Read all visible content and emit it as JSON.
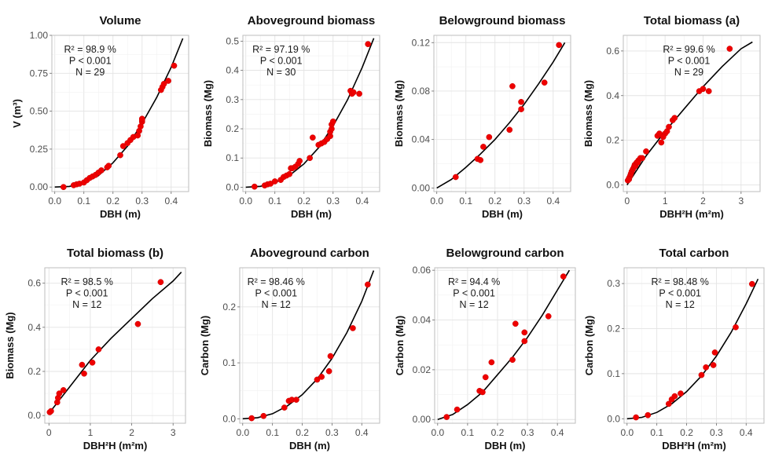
{
  "chart_data": [
    {
      "type": "scatter",
      "title": "Volume",
      "xlabel": "DBH (m)",
      "ylabel": "V (m³)",
      "xlim": [
        -0.01,
        0.46
      ],
      "ylim": [
        -0.03,
        1.0
      ],
      "xticks": [
        0.0,
        0.1,
        0.2,
        0.3,
        0.4
      ],
      "xtick_labels": [
        "0.0",
        "0.1",
        "0.2",
        "0.3",
        "0.4"
      ],
      "yticks": [
        0.0,
        0.25,
        0.5,
        0.75,
        1.0
      ],
      "ytick_labels": [
        "0.00",
        "0.25",
        "0.50",
        "0.75",
        "1.00"
      ],
      "grid": true,
      "annotations": [
        "R² = 98.9 %",
        "P < 0.001",
        "N = 29"
      ],
      "points": [
        [
          0.03,
          0.0
        ],
        [
          0.065,
          0.012
        ],
        [
          0.075,
          0.018
        ],
        [
          0.085,
          0.022
        ],
        [
          0.1,
          0.03
        ],
        [
          0.11,
          0.045
        ],
        [
          0.12,
          0.06
        ],
        [
          0.13,
          0.07
        ],
        [
          0.14,
          0.08
        ],
        [
          0.15,
          0.095
        ],
        [
          0.16,
          0.11
        ],
        [
          0.18,
          0.13
        ],
        [
          0.185,
          0.14
        ],
        [
          0.225,
          0.21
        ],
        [
          0.235,
          0.27
        ],
        [
          0.25,
          0.29
        ],
        [
          0.26,
          0.31
        ],
        [
          0.27,
          0.33
        ],
        [
          0.285,
          0.34
        ],
        [
          0.29,
          0.37
        ],
        [
          0.295,
          0.4
        ],
        [
          0.3,
          0.43
        ],
        [
          0.3,
          0.44
        ],
        [
          0.365,
          0.64
        ],
        [
          0.37,
          0.66
        ],
        [
          0.375,
          0.68
        ],
        [
          0.39,
          0.7
        ],
        [
          0.41,
          0.8
        ],
        [
          0.3,
          0.45
        ]
      ],
      "fit": [
        [
          0.0,
          0.0
        ],
        [
          0.05,
          0.004
        ],
        [
          0.1,
          0.026
        ],
        [
          0.15,
          0.075
        ],
        [
          0.2,
          0.16
        ],
        [
          0.25,
          0.27
        ],
        [
          0.3,
          0.42
        ],
        [
          0.35,
          0.59
        ],
        [
          0.4,
          0.79
        ],
        [
          0.44,
          0.98
        ]
      ]
    },
    {
      "type": "scatter",
      "title": "Aboveground biomass",
      "xlabel": "DBH (m)",
      "ylabel": "Biomass (Mg)",
      "xlim": [
        -0.01,
        0.46
      ],
      "ylim": [
        -0.015,
        0.52
      ],
      "xticks": [
        0.0,
        0.1,
        0.2,
        0.3,
        0.4
      ],
      "xtick_labels": [
        "0.0",
        "0.1",
        "0.2",
        "0.3",
        "0.4"
      ],
      "yticks": [
        0.0,
        0.1,
        0.2,
        0.3,
        0.4,
        0.5
      ],
      "ytick_labels": [
        "0.0",
        "0.1",
        "0.2",
        "0.3",
        "0.4",
        "0.5"
      ],
      "grid": true,
      "annotations": [
        "R² = 97.19 %",
        "P < 0.001",
        "N = 30"
      ],
      "points": [
        [
          0.03,
          0.002
        ],
        [
          0.065,
          0.006
        ],
        [
          0.075,
          0.01
        ],
        [
          0.085,
          0.012
        ],
        [
          0.1,
          0.02
        ],
        [
          0.12,
          0.025
        ],
        [
          0.13,
          0.035
        ],
        [
          0.14,
          0.04
        ],
        [
          0.15,
          0.045
        ],
        [
          0.155,
          0.065
        ],
        [
          0.16,
          0.065
        ],
        [
          0.17,
          0.07
        ],
        [
          0.18,
          0.08
        ],
        [
          0.185,
          0.09
        ],
        [
          0.22,
          0.1
        ],
        [
          0.23,
          0.17
        ],
        [
          0.25,
          0.145
        ],
        [
          0.26,
          0.15
        ],
        [
          0.27,
          0.155
        ],
        [
          0.28,
          0.165
        ],
        [
          0.29,
          0.175
        ],
        [
          0.29,
          0.19
        ],
        [
          0.295,
          0.2
        ],
        [
          0.295,
          0.215
        ],
        [
          0.3,
          0.225
        ],
        [
          0.36,
          0.33
        ],
        [
          0.365,
          0.32
        ],
        [
          0.37,
          0.325
        ],
        [
          0.39,
          0.32
        ],
        [
          0.42,
          0.49
        ]
      ],
      "fit": [
        [
          0.0,
          0.0
        ],
        [
          0.05,
          0.003
        ],
        [
          0.1,
          0.015
        ],
        [
          0.15,
          0.04
        ],
        [
          0.2,
          0.08
        ],
        [
          0.25,
          0.135
        ],
        [
          0.3,
          0.21
        ],
        [
          0.35,
          0.3
        ],
        [
          0.4,
          0.41
        ],
        [
          0.44,
          0.51
        ]
      ]
    },
    {
      "type": "scatter",
      "title": "Belowground biomass",
      "xlabel": "DBH (m)",
      "ylabel": "Biomass (Mg)",
      "xlim": [
        -0.01,
        0.46
      ],
      "ylim": [
        -0.003,
        0.126
      ],
      "xticks": [
        0.0,
        0.1,
        0.2,
        0.3,
        0.4
      ],
      "xtick_labels": [
        "0.0",
        "0.1",
        "0.2",
        "0.3",
        "0.4"
      ],
      "yticks": [
        0.0,
        0.04,
        0.08,
        0.12
      ],
      "ytick_labels": [
        "0.00",
        "0.04",
        "0.08",
        "0.12"
      ],
      "grid": true,
      "annotations": [],
      "points": [
        [
          0.065,
          0.009
        ],
        [
          0.14,
          0.024
        ],
        [
          0.15,
          0.023
        ],
        [
          0.16,
          0.034
        ],
        [
          0.18,
          0.042
        ],
        [
          0.25,
          0.048
        ],
        [
          0.26,
          0.084
        ],
        [
          0.29,
          0.065
        ],
        [
          0.29,
          0.071
        ],
        [
          0.37,
          0.087
        ],
        [
          0.42,
          0.118
        ]
      ],
      "fit": [
        [
          0.0,
          0.0
        ],
        [
          0.05,
          0.007
        ],
        [
          0.1,
          0.017
        ],
        [
          0.15,
          0.028
        ],
        [
          0.2,
          0.04
        ],
        [
          0.25,
          0.054
        ],
        [
          0.3,
          0.069
        ],
        [
          0.35,
          0.086
        ],
        [
          0.4,
          0.104
        ],
        [
          0.44,
          0.12
        ]
      ]
    },
    {
      "type": "scatter",
      "title": "Total biomass (a)",
      "xlabel": "DBH²H (m²m)",
      "ylabel": "Biomass (Mg)",
      "xlim": [
        -0.1,
        3.5
      ],
      "ylim": [
        -0.03,
        0.67
      ],
      "xticks": [
        0,
        1,
        2,
        3
      ],
      "xtick_labels": [
        "0",
        "1",
        "2",
        "3"
      ],
      "yticks": [
        0.0,
        0.2,
        0.4,
        0.6
      ],
      "ytick_labels": [
        "0.0",
        "0.2",
        "0.4",
        "0.6"
      ],
      "grid": true,
      "annotations": [
        "R² = 99.6 %",
        "P < 0.001",
        "N = 29"
      ],
      "points": [
        [
          0.02,
          0.02
        ],
        [
          0.05,
          0.03
        ],
        [
          0.08,
          0.04
        ],
        [
          0.1,
          0.05
        ],
        [
          0.12,
          0.06
        ],
        [
          0.15,
          0.07
        ],
        [
          0.18,
          0.08
        ],
        [
          0.2,
          0.09
        ],
        [
          0.25,
          0.1
        ],
        [
          0.3,
          0.11
        ],
        [
          0.35,
          0.12
        ],
        [
          0.4,
          0.12
        ],
        [
          0.5,
          0.15
        ],
        [
          0.8,
          0.22
        ],
        [
          0.85,
          0.23
        ],
        [
          0.9,
          0.19
        ],
        [
          1.0,
          0.23
        ],
        [
          1.05,
          0.24
        ],
        [
          1.1,
          0.26
        ],
        [
          1.2,
          0.29
        ],
        [
          1.25,
          0.3
        ],
        [
          1.9,
          0.42
        ],
        [
          2.0,
          0.43
        ],
        [
          2.15,
          0.42
        ],
        [
          2.7,
          0.61
        ],
        [
          0.05,
          0.025
        ],
        [
          0.22,
          0.085
        ],
        [
          0.28,
          0.1
        ],
        [
          0.95,
          0.215
        ]
      ],
      "fit": [
        [
          0.0,
          0.0
        ],
        [
          0.5,
          0.13
        ],
        [
          1.0,
          0.24
        ],
        [
          1.5,
          0.34
        ],
        [
          2.0,
          0.44
        ],
        [
          2.5,
          0.53
        ],
        [
          3.0,
          0.61
        ],
        [
          3.3,
          0.64
        ]
      ]
    },
    {
      "type": "scatter",
      "title": "Total biomass (b)",
      "xlabel": "DBH²H (m²m)",
      "ylabel": "Biomass (Mg)",
      "xlim": [
        -0.1,
        3.3
      ],
      "ylim": [
        -0.035,
        0.67
      ],
      "xticks": [
        0,
        1,
        2,
        3
      ],
      "xtick_labels": [
        "0",
        "1",
        "2",
        "3"
      ],
      "yticks": [
        0.0,
        0.2,
        0.4,
        0.6
      ],
      "ytick_labels": [
        "0.0",
        "0.2",
        "0.4",
        "0.6"
      ],
      "grid": true,
      "annotations": [
        "R² = 98.5 %",
        "P < 0.001",
        "N = 12"
      ],
      "points": [
        [
          0.02,
          0.015
        ],
        [
          0.2,
          0.06
        ],
        [
          0.22,
          0.08
        ],
        [
          0.25,
          0.1
        ],
        [
          0.35,
          0.115
        ],
        [
          0.8,
          0.23
        ],
        [
          0.85,
          0.19
        ],
        [
          1.05,
          0.24
        ],
        [
          1.2,
          0.3
        ],
        [
          2.15,
          0.415
        ],
        [
          2.7,
          0.605
        ],
        [
          0.05,
          0.02
        ]
      ],
      "fit": [
        [
          0.0,
          0.01
        ],
        [
          0.5,
          0.13
        ],
        [
          1.0,
          0.25
        ],
        [
          1.5,
          0.35
        ],
        [
          2.0,
          0.44
        ],
        [
          2.5,
          0.53
        ],
        [
          3.0,
          0.61
        ],
        [
          3.2,
          0.65
        ]
      ]
    },
    {
      "type": "scatter",
      "title": "Aboveground carbon",
      "xlabel": "DBH (m)",
      "ylabel": "Carbon (Mg)",
      "xlim": [
        -0.01,
        0.46
      ],
      "ylim": [
        -0.008,
        0.27
      ],
      "xticks": [
        0.0,
        0.1,
        0.2,
        0.3,
        0.4
      ],
      "xtick_labels": [
        "0.0",
        "0.1",
        "0.2",
        "0.3",
        "0.4"
      ],
      "yticks": [
        0.0,
        0.1,
        0.2
      ],
      "ytick_labels": [
        "0.0",
        "0.1",
        "0.2"
      ],
      "grid": true,
      "annotations": [
        "R² = 98.46 %",
        "P < 0.001",
        "N = 12"
      ],
      "points": [
        [
          0.03,
          0.001
        ],
        [
          0.07,
          0.005
        ],
        [
          0.14,
          0.02
        ],
        [
          0.155,
          0.032
        ],
        [
          0.165,
          0.034
        ],
        [
          0.18,
          0.034
        ],
        [
          0.25,
          0.07
        ],
        [
          0.265,
          0.075
        ],
        [
          0.29,
          0.085
        ],
        [
          0.295,
          0.112
        ],
        [
          0.37,
          0.162
        ],
        [
          0.42,
          0.24
        ]
      ],
      "fit": [
        [
          0.0,
          0.0
        ],
        [
          0.05,
          0.002
        ],
        [
          0.1,
          0.009
        ],
        [
          0.15,
          0.023
        ],
        [
          0.2,
          0.043
        ],
        [
          0.25,
          0.071
        ],
        [
          0.3,
          0.108
        ],
        [
          0.35,
          0.154
        ],
        [
          0.4,
          0.21
        ],
        [
          0.44,
          0.265
        ]
      ]
    },
    {
      "type": "scatter",
      "title": "Belowground carbon",
      "xlabel": "DBH (m)",
      "ylabel": "Carbon (Mg)",
      "xlim": [
        -0.01,
        0.46
      ],
      "ylim": [
        -0.0015,
        0.061
      ],
      "xticks": [
        0.0,
        0.1,
        0.2,
        0.3,
        0.4
      ],
      "xtick_labels": [
        "0.0",
        "0.1",
        "0.2",
        "0.3",
        "0.4"
      ],
      "yticks": [
        0.0,
        0.02,
        0.04,
        0.06
      ],
      "ytick_labels": [
        "0.00",
        "0.02",
        "0.04",
        "0.06"
      ],
      "grid": true,
      "annotations": [
        "R² = 94.4 %",
        "P < 0.001",
        "N = 12"
      ],
      "points": [
        [
          0.03,
          0.001
        ],
        [
          0.065,
          0.004
        ],
        [
          0.14,
          0.0115
        ],
        [
          0.15,
          0.011
        ],
        [
          0.16,
          0.017
        ],
        [
          0.18,
          0.023
        ],
        [
          0.25,
          0.024
        ],
        [
          0.26,
          0.0385
        ],
        [
          0.29,
          0.0315
        ],
        [
          0.29,
          0.035
        ],
        [
          0.37,
          0.0415
        ],
        [
          0.42,
          0.0575
        ]
      ],
      "fit": [
        [
          0.0,
          0.0
        ],
        [
          0.05,
          0.002
        ],
        [
          0.1,
          0.006
        ],
        [
          0.15,
          0.011
        ],
        [
          0.2,
          0.018
        ],
        [
          0.25,
          0.025
        ],
        [
          0.3,
          0.033
        ],
        [
          0.35,
          0.042
        ],
        [
          0.4,
          0.052
        ],
        [
          0.44,
          0.06
        ]
      ]
    },
    {
      "type": "scatter",
      "title": "Total carbon",
      "xlabel": "DBH²H (m²m)",
      "ylabel": "Carbon (Mg)",
      "xlim": [
        -0.01,
        0.46
      ],
      "ylim": [
        -0.01,
        0.335
      ],
      "xticks": [
        0.0,
        0.1,
        0.2,
        0.3,
        0.4
      ],
      "xtick_labels": [
        "0.0",
        "0.1",
        "0.2",
        "0.3",
        "0.4"
      ],
      "yticks": [
        0.0,
        0.1,
        0.2,
        0.3
      ],
      "ytick_labels": [
        "0.0",
        "0.1",
        "0.2",
        "0.3"
      ],
      "grid": true,
      "annotations": [
        "R² = 98.48 %",
        "P < 0.001",
        "N = 12"
      ],
      "points": [
        [
          0.03,
          0.003
        ],
        [
          0.07,
          0.008
        ],
        [
          0.14,
          0.033
        ],
        [
          0.15,
          0.043
        ],
        [
          0.16,
          0.05
        ],
        [
          0.18,
          0.056
        ],
        [
          0.25,
          0.097
        ],
        [
          0.265,
          0.114
        ],
        [
          0.29,
          0.119
        ],
        [
          0.295,
          0.147
        ],
        [
          0.365,
          0.203
        ],
        [
          0.42,
          0.299
        ]
      ],
      "fit": [
        [
          0.0,
          0.0
        ],
        [
          0.05,
          0.003
        ],
        [
          0.1,
          0.014
        ],
        [
          0.15,
          0.033
        ],
        [
          0.2,
          0.06
        ],
        [
          0.25,
          0.095
        ],
        [
          0.3,
          0.139
        ],
        [
          0.35,
          0.192
        ],
        [
          0.4,
          0.255
        ],
        [
          0.44,
          0.31
        ]
      ]
    }
  ]
}
